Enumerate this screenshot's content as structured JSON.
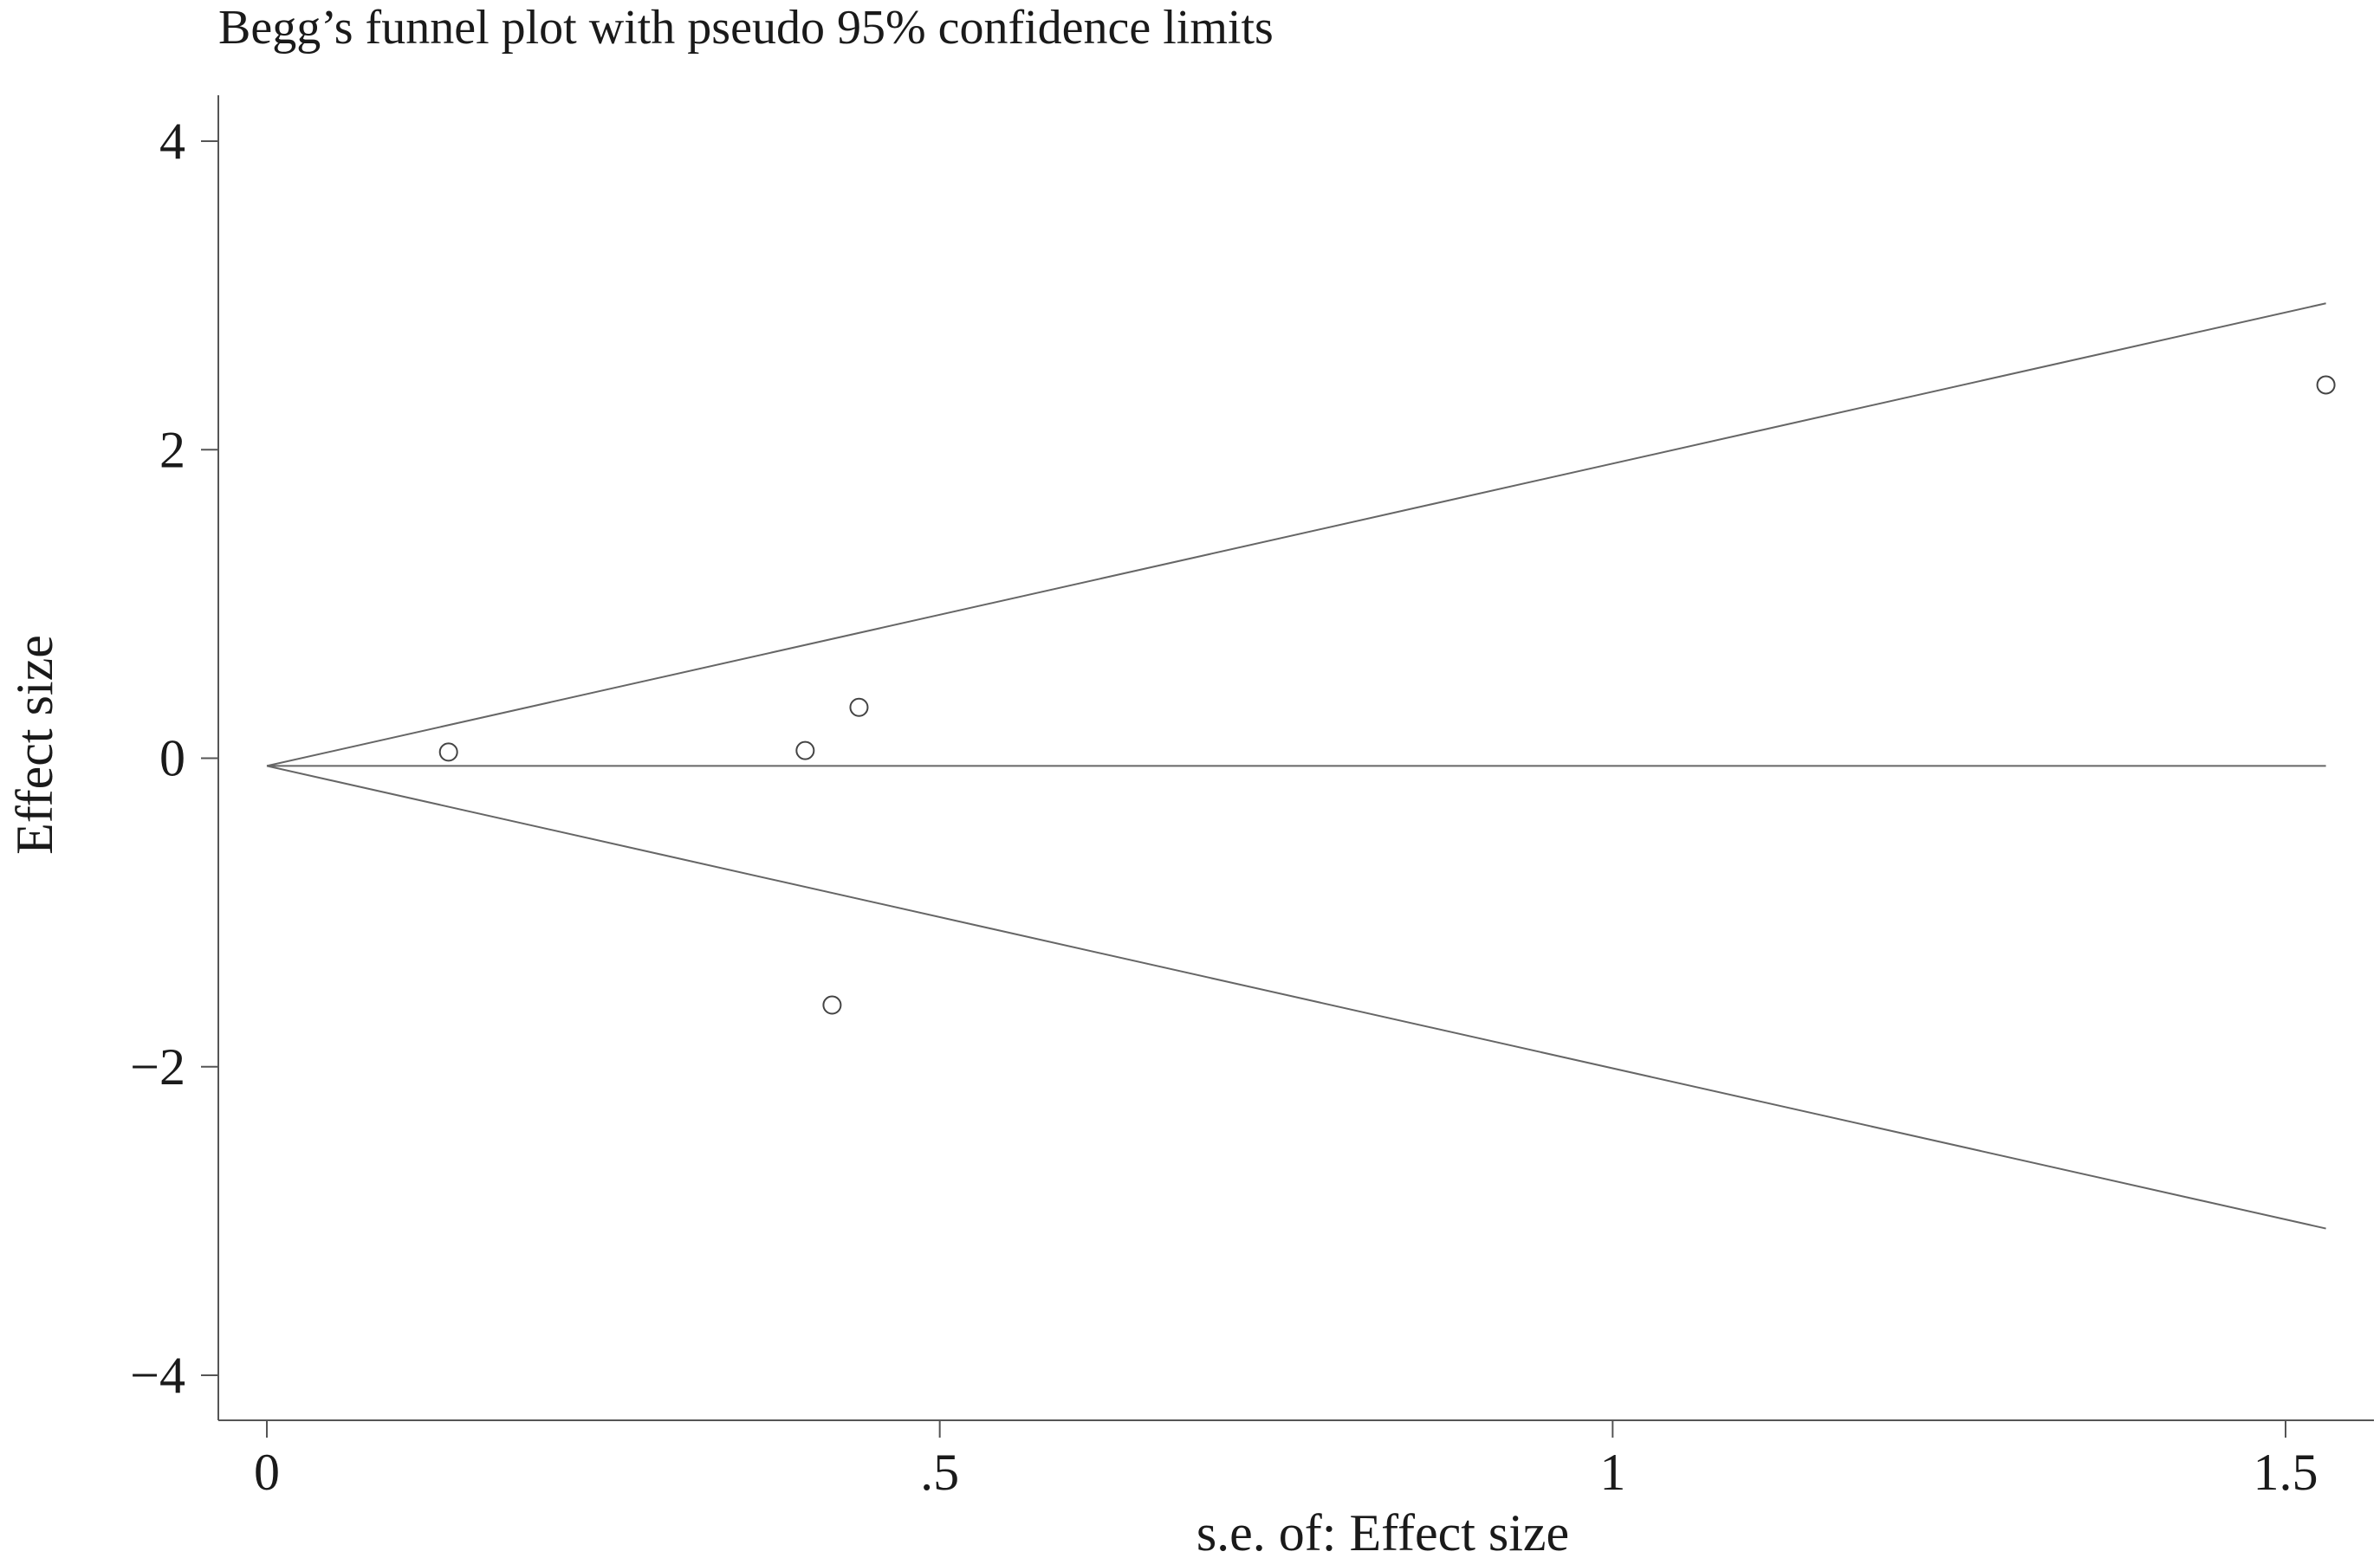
{
  "chart_data": {
    "type": "scatter",
    "title": "Begg’s funnel plot with pseudo 95% confidence limits",
    "xlabel": "s.e. of: Effect size",
    "ylabel": "Effect size",
    "xlim": [
      0,
      1.53
    ],
    "ylim": [
      -4,
      4
    ],
    "x_ticks": [
      {
        "value": 0,
        "label": "0"
      },
      {
        "value": 0.5,
        "label": ".5"
      },
      {
        "value": 1,
        "label": "1"
      },
      {
        "value": 1.5,
        "label": "1.5"
      }
    ],
    "y_ticks": [
      {
        "value": 4,
        "label": "4"
      },
      {
        "value": 2,
        "label": "2"
      },
      {
        "value": 0,
        "label": "0"
      },
      {
        "value": -2,
        "label": "−2"
      },
      {
        "value": -4,
        "label": "−4"
      }
    ],
    "pooled_effect": -0.05,
    "se_max": 1.53,
    "z": 1.96,
    "points": [
      {
        "x": 0.135,
        "y": 0.04
      },
      {
        "x": 0.4,
        "y": 0.05
      },
      {
        "x": 0.44,
        "y": 0.33
      },
      {
        "x": 0.42,
        "y": -1.6
      },
      {
        "x": 1.53,
        "y": 2.42
      }
    ],
    "grid": false,
    "legend": "none"
  }
}
